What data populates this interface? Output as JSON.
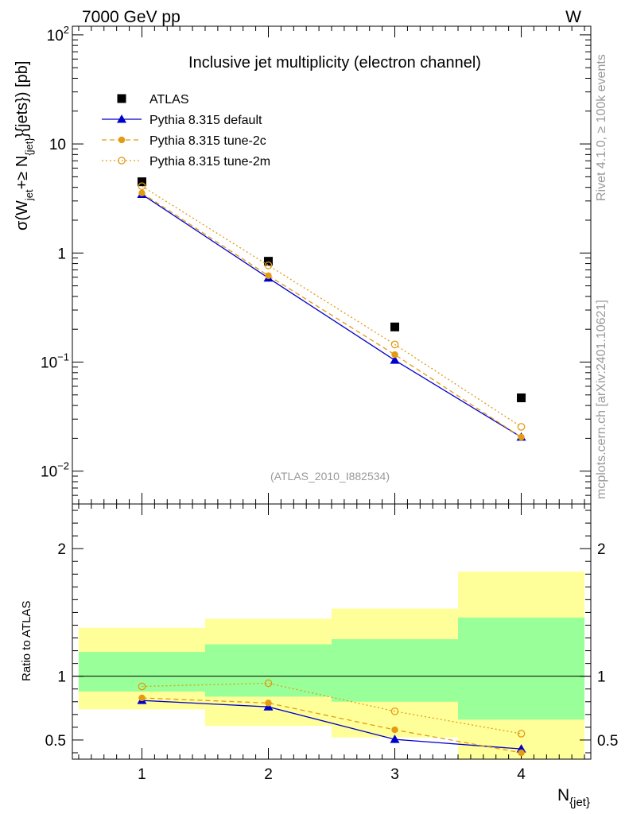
{
  "header": {
    "left_label": "7000 GeV pp",
    "right_label": "W"
  },
  "side_labels": {
    "rivet": "Rivet 4.1.0, ≥ 100k events",
    "source": "mcplots.cern.ch [arXiv:2401.10621]"
  },
  "chart_data": [
    {
      "type": "scatter",
      "title": "Inclusive jet multiplicity (electron channel)",
      "analysis_id": "(ATLAS_2010_I882534)",
      "ylabel": {
        "main": "σ(W",
        "sub1": "jet",
        "mid": "+≥ N",
        "sub2": "{jet}",
        "tail": "}{jets}) [pb]"
      },
      "yscale": "log",
      "ylim": [
        0.005,
        120
      ],
      "xlim": [
        0.45,
        4.55
      ],
      "ytick_labels": [
        {
          "base": "10",
          "exp": "2",
          "value": 100
        },
        {
          "base": "10",
          "exp": "",
          "value": 10
        },
        {
          "base": "1",
          "exp": "",
          "value": 1
        },
        {
          "base": "10",
          "exp": "−1",
          "value": 0.1
        },
        {
          "base": "10",
          "exp": "−2",
          "value": 0.01
        }
      ],
      "legend_position": "top-left",
      "series": [
        {
          "name": "ATLAS",
          "x": [
            1,
            2,
            3,
            4
          ],
          "values": [
            4.5,
            0.84,
            0.21,
            0.047
          ],
          "color": "#000000",
          "marker": "square"
        },
        {
          "name": "Pythia 8.315 default",
          "x": [
            1,
            2,
            3,
            4
          ],
          "values": [
            3.45,
            0.59,
            0.104,
            0.0205
          ],
          "color": "#0000cc",
          "marker": "triangle",
          "line": "solid"
        },
        {
          "name": "Pythia 8.315 tune-2c",
          "x": [
            1,
            2,
            3,
            4
          ],
          "values": [
            3.55,
            0.62,
            0.117,
            0.0205
          ],
          "color": "#e39b13",
          "marker": "circle",
          "line": "dashed"
        },
        {
          "name": "Pythia 8.315 tune-2m",
          "x": [
            1,
            2,
            3,
            4
          ],
          "values": [
            4.1,
            0.77,
            0.145,
            0.0255
          ],
          "color": "#e39b13",
          "marker": "open-circle",
          "line": "dotted"
        }
      ]
    },
    {
      "type": "scatter",
      "ylabel": "Ratio to ATLAS",
      "xlabel": {
        "main": "N",
        "sub": "{jet}"
      },
      "xlim": [
        0.45,
        4.55
      ],
      "ylim": [
        0.35,
        2.35
      ],
      "xtick_labels": [
        "1",
        "2",
        "3",
        "4"
      ],
      "ytick_labels": [
        "0.5",
        "1",
        "2"
      ],
      "bands": [
        {
          "x0": 0.5,
          "x1": 1.5,
          "yellow": [
            0.74,
            1.38
          ],
          "green": [
            0.88,
            1.19
          ]
        },
        {
          "x0": 1.5,
          "x1": 2.5,
          "yellow": [
            0.61,
            1.45
          ],
          "green": [
            0.84,
            1.25
          ]
        },
        {
          "x0": 2.5,
          "x1": 3.5,
          "yellow": [
            0.52,
            1.53
          ],
          "green": [
            0.8,
            1.29
          ]
        },
        {
          "x0": 3.5,
          "x1": 4.5,
          "yellow": [
            0.35,
            1.82
          ],
          "green": [
            0.66,
            1.46
          ]
        }
      ],
      "band_colors": {
        "yellow": "#ffff99",
        "green": "#99ff99"
      },
      "series": [
        {
          "name": "Pythia 8.315 default",
          "x": [
            1,
            2,
            3,
            4
          ],
          "values": [
            0.81,
            0.76,
            0.505,
            0.43
          ],
          "color": "#0000cc",
          "marker": "triangle",
          "line": "solid"
        },
        {
          "name": "Pythia 8.315 tune-2c",
          "x": [
            1,
            2,
            3,
            4
          ],
          "values": [
            0.83,
            0.79,
            0.58,
            0.4
          ],
          "color": "#e39b13",
          "marker": "circle",
          "line": "dashed"
        },
        {
          "name": "Pythia 8.315 tune-2m",
          "x": [
            1,
            2,
            3,
            4
          ],
          "values": [
            0.92,
            0.945,
            0.725,
            0.55
          ],
          "color": "#e39b13",
          "marker": "open-circle",
          "line": "dotted"
        }
      ]
    }
  ]
}
